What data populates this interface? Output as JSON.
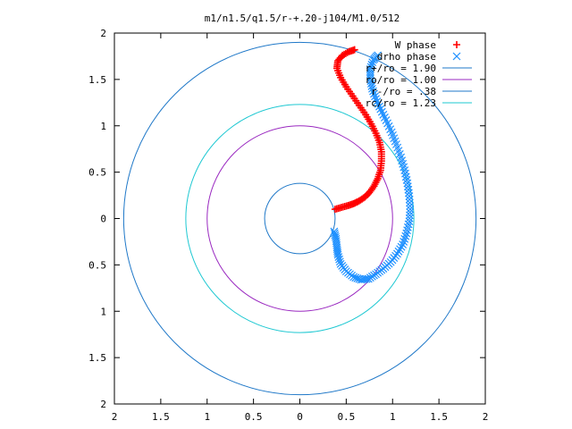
{
  "chart_data": {
    "type": "scatter",
    "title": "m1/n1.5/q1.5/r-+.20-j104/M1.0/512",
    "xlabel": "",
    "ylabel": "",
    "xlim": [
      -2,
      2
    ],
    "ylim": [
      -2,
      2
    ],
    "x_tick_values": [
      -2,
      -1.5,
      -1,
      -0.5,
      0,
      0.5,
      1,
      1.5,
      2
    ],
    "x_tick_labels": [
      "2",
      "1.5",
      "1",
      "0.5",
      "0",
      "0.5",
      "1",
      "1.5",
      "2"
    ],
    "y_tick_values": [
      2,
      1.5,
      1,
      0.5,
      0,
      -0.5,
      -1,
      -1.5,
      -2
    ],
    "y_tick_labels": [
      "2",
      "1.5",
      "1",
      "0.5",
      "0",
      "0.5",
      "1",
      "1.5",
      "2"
    ],
    "grid": false,
    "legend_position": "top-right",
    "series": [
      {
        "name": "W phase",
        "marker": "+",
        "color": "#ff0000",
        "points": [
          [
            0.38,
            0.1
          ],
          [
            0.45,
            0.12
          ],
          [
            0.52,
            0.14
          ],
          [
            0.58,
            0.16
          ],
          [
            0.64,
            0.19
          ],
          [
            0.7,
            0.23
          ],
          [
            0.75,
            0.28
          ],
          [
            0.8,
            0.35
          ],
          [
            0.84,
            0.43
          ],
          [
            0.87,
            0.52
          ],
          [
            0.88,
            0.62
          ],
          [
            0.88,
            0.72
          ],
          [
            0.86,
            0.82
          ],
          [
            0.82,
            0.92
          ],
          [
            0.77,
            1.02
          ],
          [
            0.71,
            1.12
          ],
          [
            0.64,
            1.22
          ],
          [
            0.57,
            1.32
          ],
          [
            0.5,
            1.42
          ],
          [
            0.44,
            1.52
          ],
          [
            0.4,
            1.62
          ],
          [
            0.41,
            1.7
          ],
          [
            0.46,
            1.76
          ],
          [
            0.53,
            1.8
          ],
          [
            0.59,
            1.82
          ]
        ]
      },
      {
        "name": "drho phase",
        "marker": "x",
        "color": "#1e90ff",
        "points": [
          [
            0.37,
            -0.14
          ],
          [
            0.39,
            -0.22
          ],
          [
            0.4,
            -0.31
          ],
          [
            0.41,
            -0.39
          ],
          [
            0.44,
            -0.49
          ],
          [
            0.5,
            -0.57
          ],
          [
            0.58,
            -0.63
          ],
          [
            0.66,
            -0.66
          ],
          [
            0.74,
            -0.65
          ],
          [
            0.82,
            -0.6
          ],
          [
            0.9,
            -0.54
          ],
          [
            0.98,
            -0.47
          ],
          [
            1.05,
            -0.38
          ],
          [
            1.11,
            -0.28
          ],
          [
            1.15,
            -0.16
          ],
          [
            1.18,
            -0.03
          ],
          [
            1.19,
            0.1
          ],
          [
            1.18,
            0.24
          ],
          [
            1.16,
            0.38
          ],
          [
            1.13,
            0.52
          ],
          [
            1.09,
            0.66
          ],
          [
            1.04,
            0.8
          ],
          [
            0.99,
            0.93
          ],
          [
            0.93,
            1.06
          ],
          [
            0.87,
            1.18
          ],
          [
            0.82,
            1.29
          ],
          [
            0.78,
            1.4
          ],
          [
            0.76,
            1.51
          ],
          [
            0.76,
            1.61
          ],
          [
            0.79,
            1.71
          ],
          [
            0.84,
            1.76
          ]
        ]
      },
      {
        "name": "r+/ro = 1.90",
        "shape": "circle",
        "radius": 1.9,
        "color": "#1f78c8"
      },
      {
        "name": "ro/ro = 1.00",
        "shape": "circle",
        "radius": 1.0,
        "color": "#9a29c0"
      },
      {
        "name": "r-/ro = .38",
        "shape": "circle",
        "radius": 0.38,
        "color": "#1f78c8"
      },
      {
        "name": "rc/ro = 1.23",
        "shape": "circle",
        "radius": 1.23,
        "color": "#1ec8d2"
      }
    ]
  }
}
